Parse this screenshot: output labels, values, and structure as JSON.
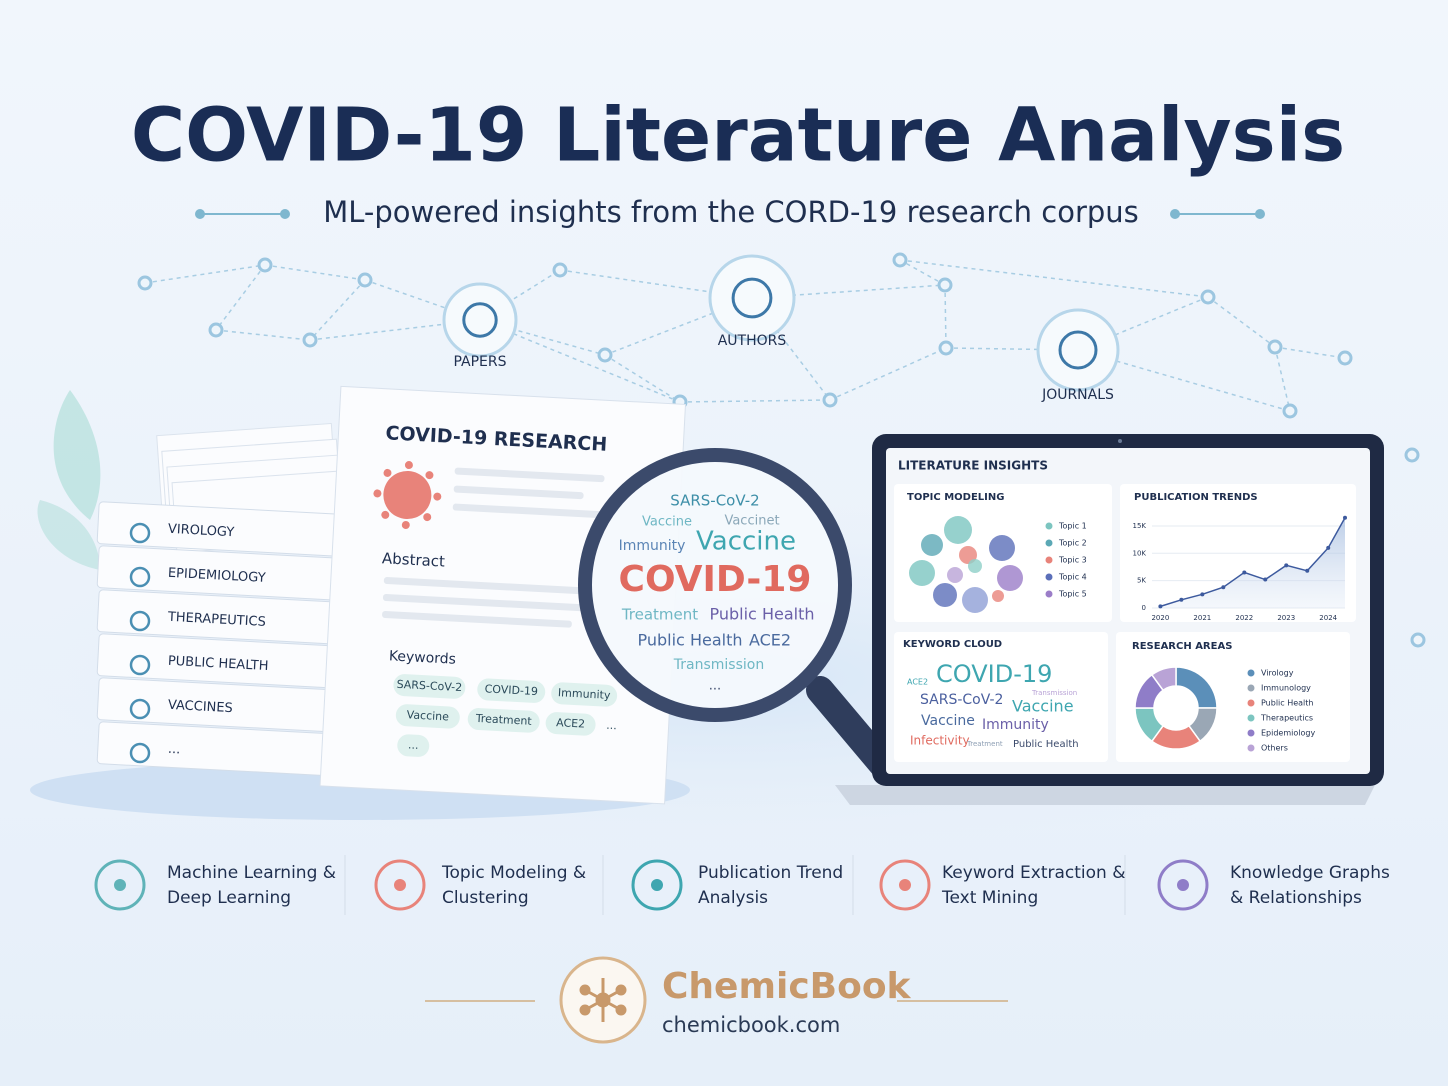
{
  "header": {
    "title": "COVID-19 Literature Analysis",
    "subtitle": "ML-powered insights from the CORD-19 research corpus"
  },
  "network": {
    "nodes": [
      {
        "label": "PAPERS"
      },
      {
        "label": "AUTHORS"
      },
      {
        "label": "JOURNALS"
      }
    ]
  },
  "stack": {
    "labels": [
      "VIROLOGY",
      "EPIDEMIOLOGY",
      "THERAPEUTICS",
      "PUBLIC HEALTH",
      "VACCINES",
      "..."
    ]
  },
  "paper": {
    "title": "COVID-19 RESEARCH",
    "abstract": "Abstract",
    "keywords_label": "Keywords",
    "keywords": [
      "SARS-CoV-2",
      "COVID-19",
      "Immunity",
      "Vaccine",
      "Treatment",
      "ACE2",
      "...",
      "..."
    ]
  },
  "magnifier": {
    "words": [
      "SARS-CoV-2",
      "Vaccine",
      "Vaccinet",
      "Immunity",
      "Vaccine",
      "COVID-19",
      "Treatment",
      "Public Health",
      "Public Health",
      "ACE2",
      "Transmission",
      "..."
    ]
  },
  "laptop": {
    "title": "LITERATURE INSIGHTS",
    "topic_modeling": {
      "title": "TOPIC MODELING",
      "legend": [
        "Topic 1",
        "Topic 2",
        "Topic 3",
        "Topic 4",
        "Topic 5"
      ]
    },
    "trends": {
      "title": "PUBLICATION TRENDS",
      "x": [
        2020,
        2020.5,
        2021,
        2021.5,
        2022,
        2022.5,
        2023,
        2023.5,
        2024,
        2024.4
      ],
      "values": [
        300,
        1500,
        2500,
        3800,
        6500,
        5200,
        7800,
        6800,
        11000,
        16500
      ],
      "xlim": [
        2019.8,
        2024.4
      ],
      "ylim": [
        0,
        17000
      ],
      "xticks": [
        2020,
        2021,
        2022,
        2023,
        2024
      ],
      "yticks": [
        0,
        {
          "value": 5000,
          "label": "5K"
        },
        {
          "value": 10000,
          "label": "10K"
        },
        {
          "value": 15000,
          "label": "15K"
        }
      ]
    },
    "keyword_cloud": {
      "title": "KEYWORD CLOUD",
      "words": [
        "ACE2",
        "COVID-19",
        "SARS-CoV-2",
        "Vaccine",
        "Vaccine",
        "Immunity",
        "Infectivity",
        "Transmission",
        "Treatment",
        "Public Health"
      ]
    },
    "research_areas": {
      "title": "RESEARCH AREAS",
      "categories": [
        "Virology",
        "Immunology",
        "Public Health",
        "Therapeutics",
        "Epidemiology",
        "Others"
      ],
      "values": [
        25,
        15,
        20,
        15,
        15,
        10
      ],
      "colors": [
        "#5b8fb9",
        "#9aa7b5",
        "#e8837a",
        "#7cc5c0",
        "#8f7dc8",
        "#b9a3d6"
      ]
    }
  },
  "features": [
    {
      "lines": [
        "Machine Learning &",
        "Deep Learning"
      ]
    },
    {
      "lines": [
        "Topic Modeling &",
        "Clustering"
      ]
    },
    {
      "lines": [
        "Publication Trend",
        "Analysis"
      ]
    },
    {
      "lines": [
        "Keyword Extraction &",
        "Text Mining"
      ]
    },
    {
      "lines": [
        "Knowledge Graphs",
        "& Relationships"
      ]
    }
  ],
  "footer": {
    "brand": "ChemicBook",
    "url": "chemicbook.com"
  }
}
